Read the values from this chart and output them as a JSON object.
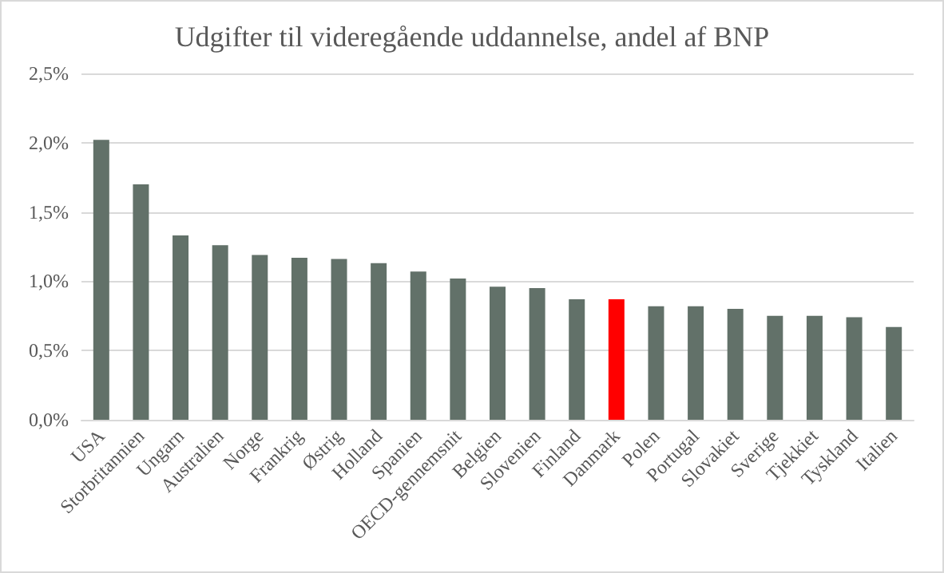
{
  "chart_data": {
    "type": "bar",
    "title": "Udgifter til videregående uddannelse, andel af BNP",
    "categories": [
      "USA",
      "Storbritannien",
      "Ungarn",
      "Australien",
      "Norge",
      "Frankrig",
      "Østrig",
      "Holland",
      "Spanien",
      "OECD-gennemsnit",
      "Belgien",
      "Slovenien",
      "Finland",
      "Danmark",
      "Polen",
      "Portugal",
      "Slovakiet",
      "Sverige",
      "Tjekkiet",
      "Tyskland",
      "Italien"
    ],
    "values": [
      2.02,
      1.7,
      1.33,
      1.26,
      1.19,
      1.17,
      1.16,
      1.13,
      1.07,
      1.02,
      0.96,
      0.95,
      0.87,
      0.87,
      0.82,
      0.82,
      0.8,
      0.75,
      0.75,
      0.74,
      0.67
    ],
    "colors": [
      "#627169",
      "#627169",
      "#627169",
      "#627169",
      "#627169",
      "#627169",
      "#627169",
      "#627169",
      "#627169",
      "#627169",
      "#627169",
      "#627169",
      "#627169",
      "#ff0000",
      "#627169",
      "#627169",
      "#627169",
      "#627169",
      "#627169",
      "#627169",
      "#627169"
    ],
    "ylim": [
      0,
      2.5
    ],
    "yticks": [
      {
        "value": 0,
        "label": "0,0%"
      },
      {
        "value": 0.5,
        "label": "0,5%"
      },
      {
        "value": 1,
        "label": "1,0%"
      },
      {
        "value": 1.5,
        "label": "1,5%"
      },
      {
        "value": 2,
        "label": "2,0%"
      },
      {
        "value": 2.5,
        "label": "2,5%"
      }
    ],
    "grid": "y"
  }
}
